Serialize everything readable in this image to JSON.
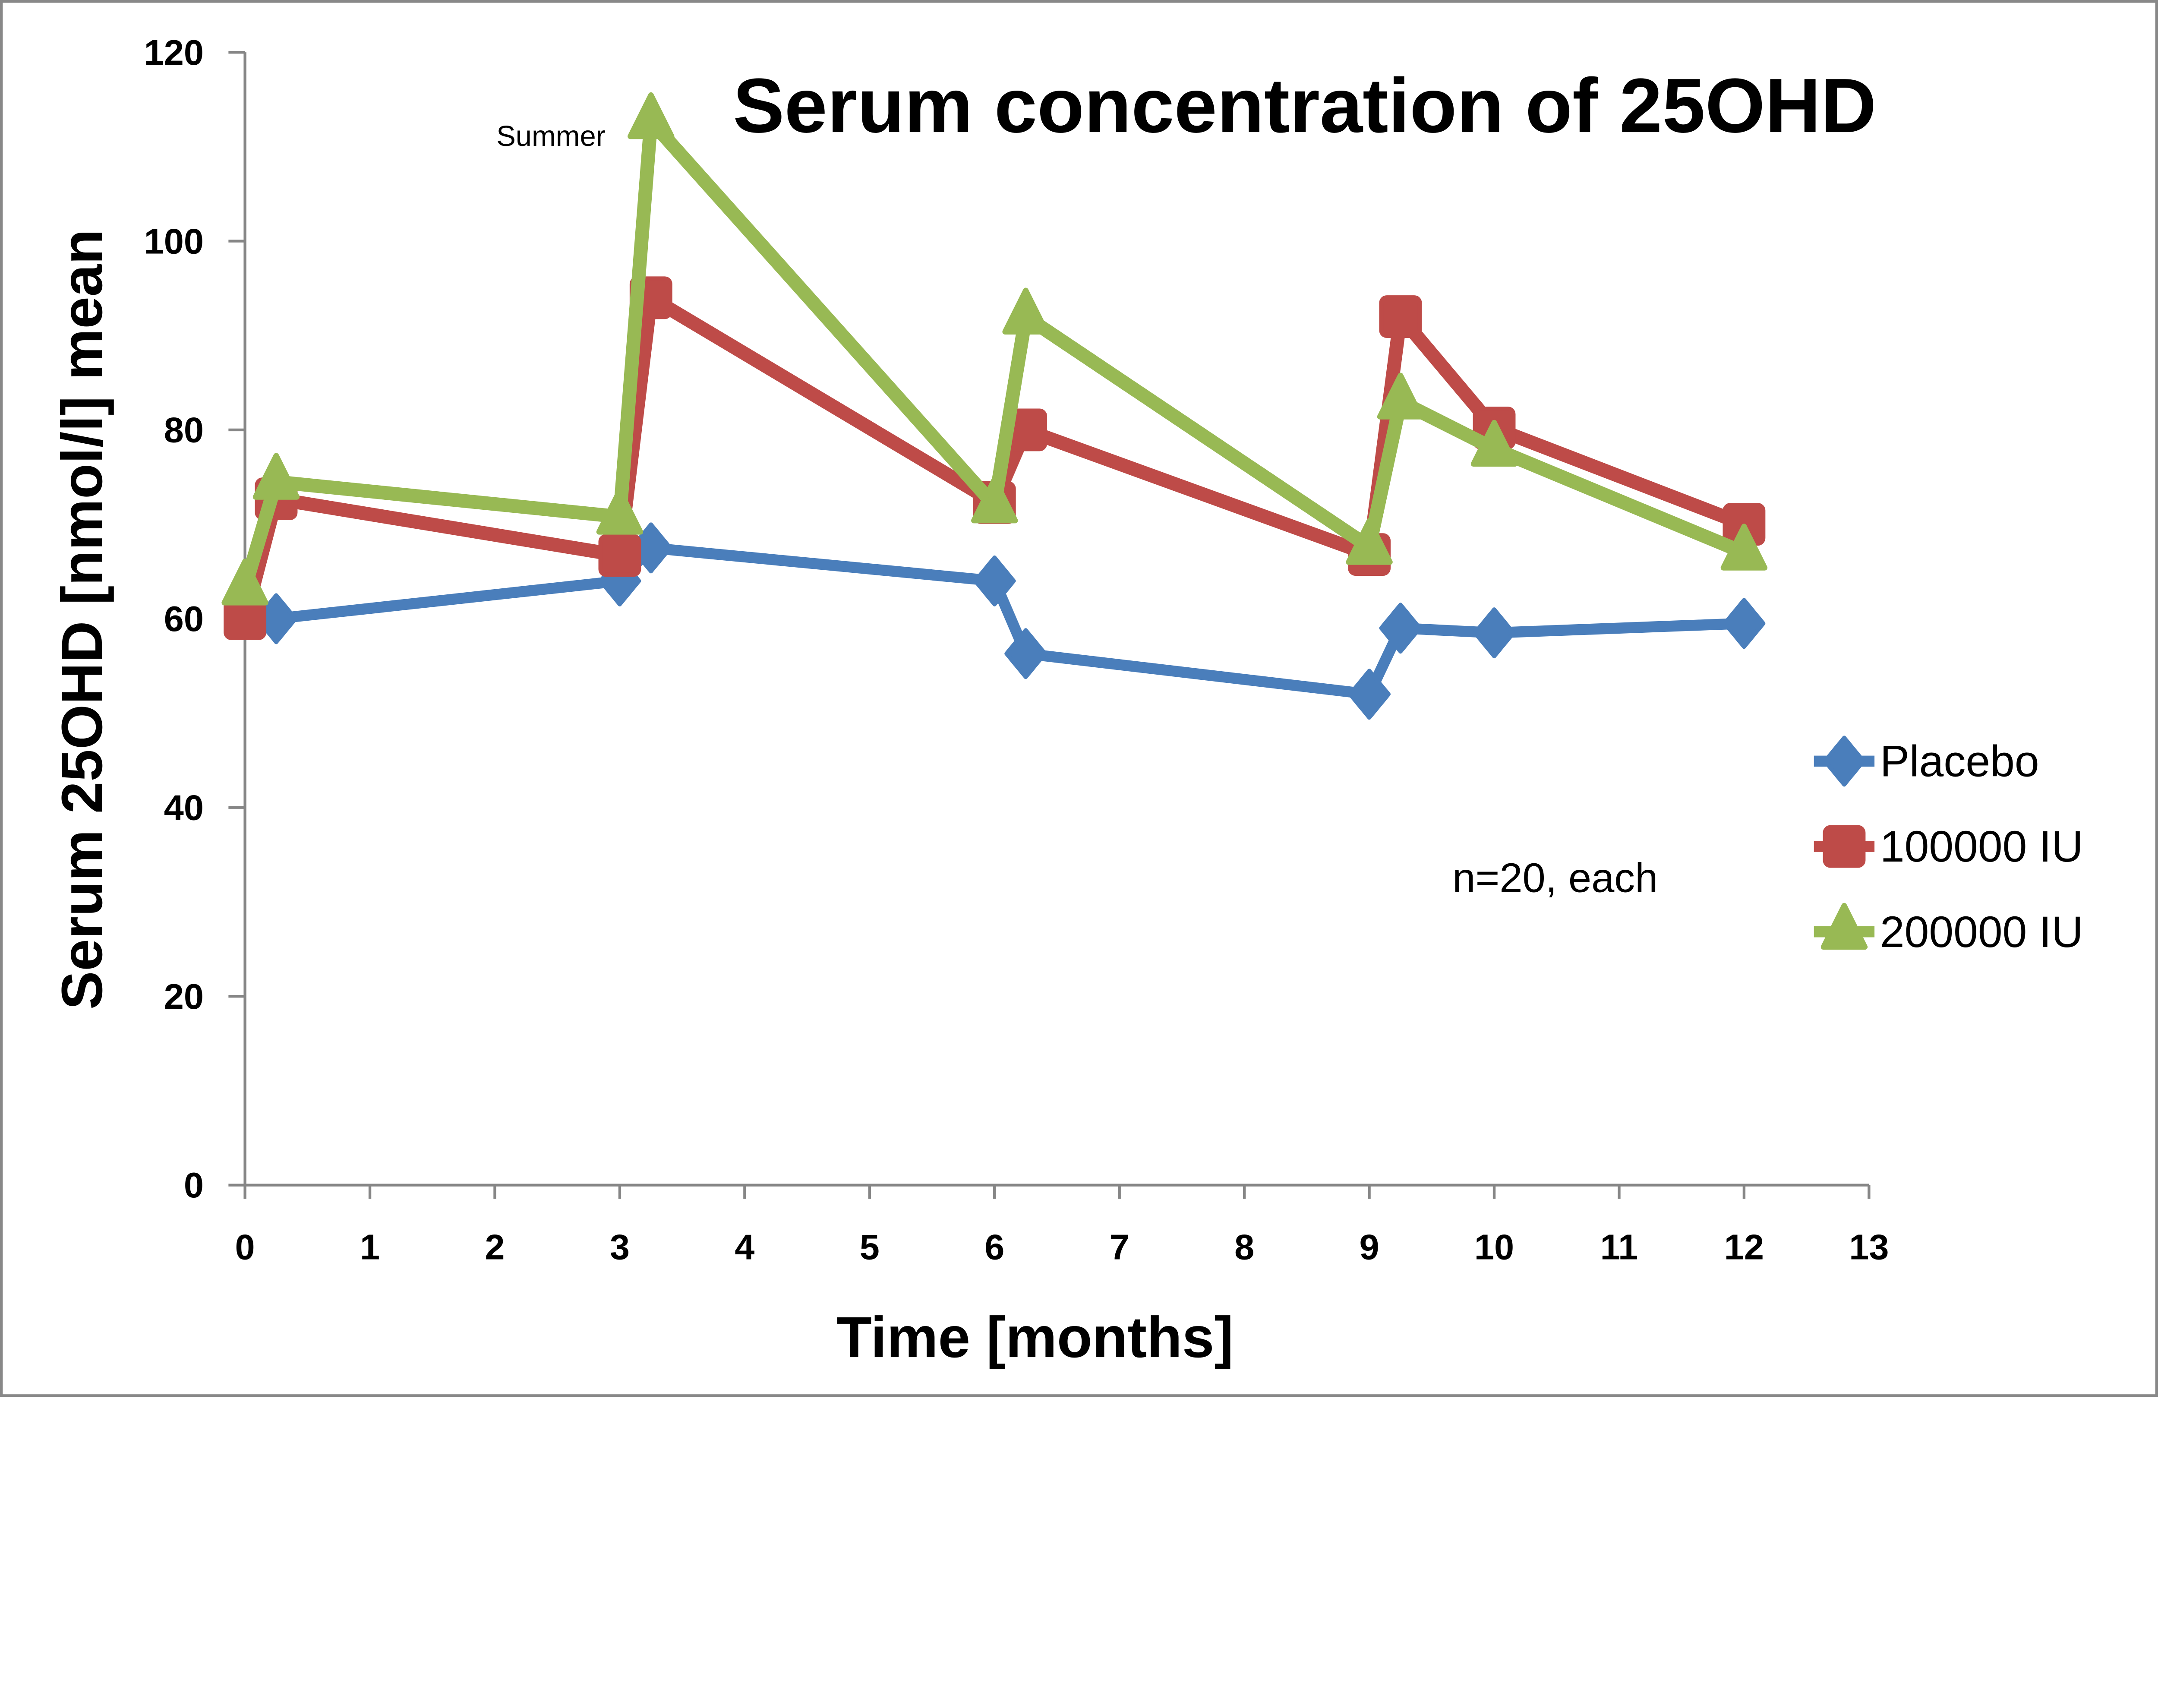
{
  "chart_data": {
    "type": "line",
    "title": "Serum concentration of 25OHD",
    "xlabel": "Time [months]",
    "ylabel": "Serum 25OHD [nmol/l] mean",
    "xlim": [
      0,
      13
    ],
    "ylim": [
      0,
      120
    ],
    "xticks": [
      "0",
      "1",
      "2",
      "3",
      "4",
      "5",
      "6",
      "7",
      "8",
      "9",
      "10",
      "11",
      "12",
      "13"
    ],
    "yticks": [
      "0",
      "20",
      "40",
      "60",
      "80",
      "100",
      "120"
    ],
    "grid": false,
    "legend_position": "right",
    "annotations": [
      "Summer",
      "n=20, each"
    ],
    "series": [
      {
        "name": "Placebo",
        "color": "#4a7ebb",
        "marker": "diamond",
        "x": [
          0.25,
          3,
          3.25,
          6,
          6.25,
          9,
          9.25,
          10,
          12
        ],
        "y": [
          60,
          64,
          67.5,
          64,
          56.3,
          52,
          59,
          58.5,
          59.5
        ]
      },
      {
        "name": "100000 IU",
        "color": "#be4b48",
        "marker": "square",
        "x": [
          0,
          0.25,
          3,
          3.25,
          6,
          6.25,
          9,
          9.25,
          10,
          12
        ],
        "y": [
          60,
          72.7,
          66.7,
          94,
          72.3,
          80,
          66.8,
          92,
          80.2,
          70
        ]
      },
      {
        "name": "200000 IU",
        "color": "#98b954",
        "marker": "triangle",
        "x": [
          0,
          0.25,
          3,
          3.25,
          6,
          6.25,
          9,
          9.25,
          10,
          12
        ],
        "y": [
          63.3,
          74.5,
          70.8,
          112.7,
          72,
          92,
          67.6,
          83,
          78,
          67
        ]
      }
    ]
  }
}
